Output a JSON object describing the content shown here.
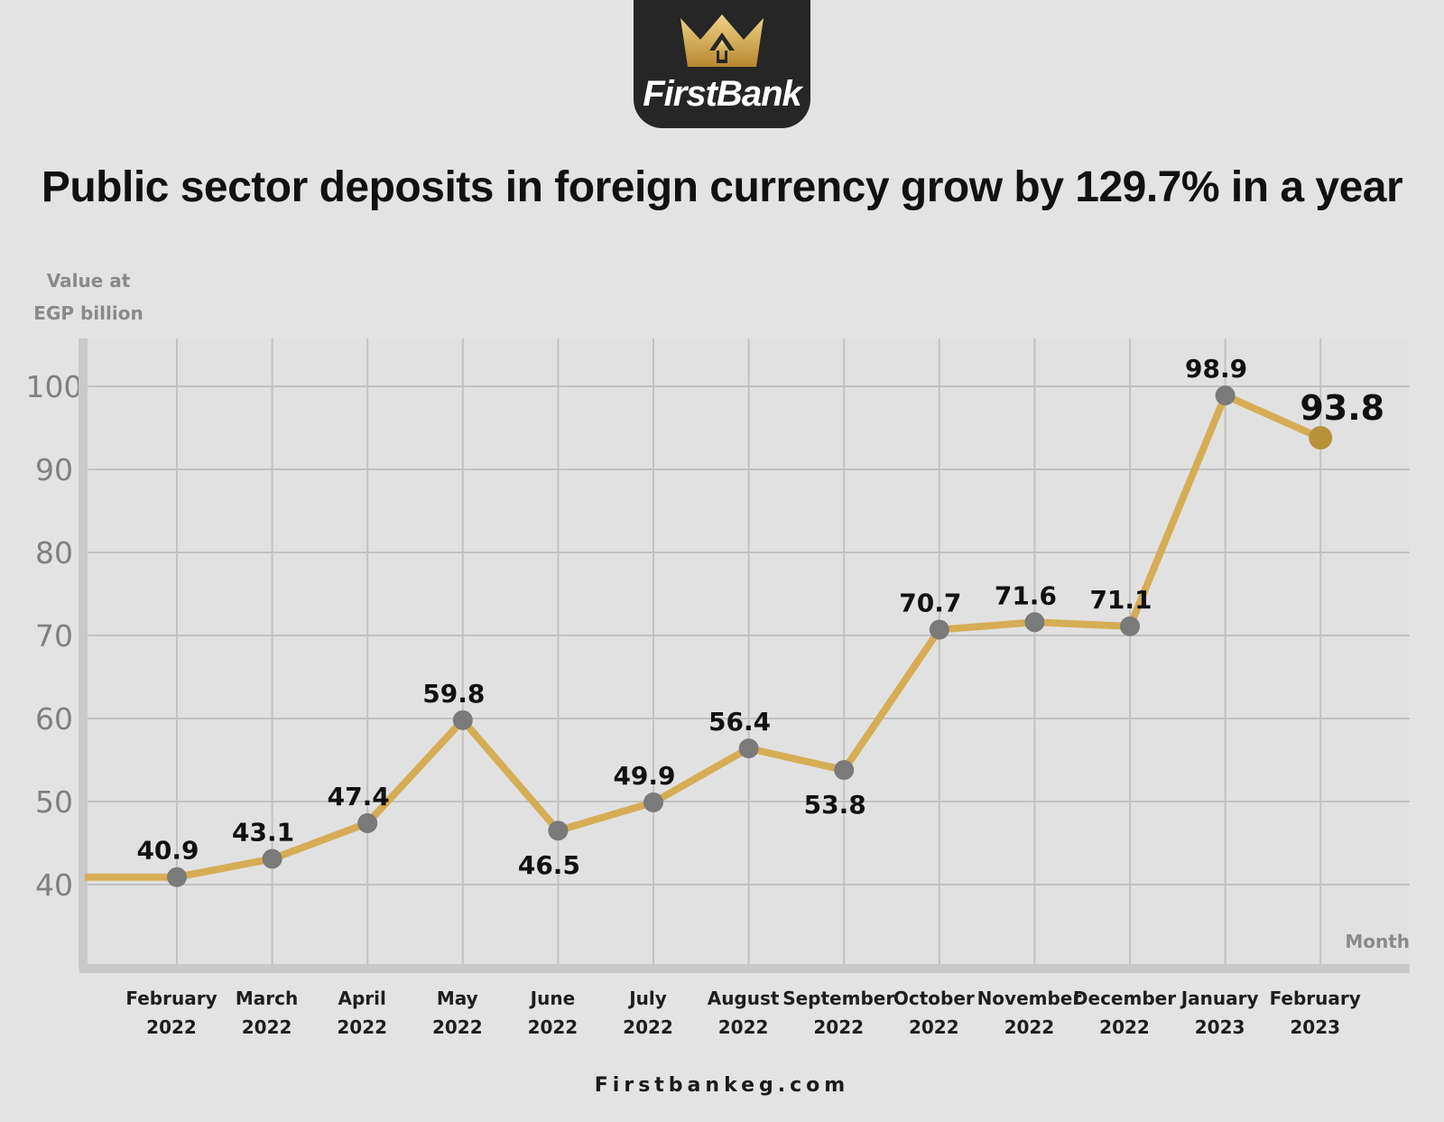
{
  "logo": {
    "text": "FirstBank",
    "icon": "crown-icon",
    "background": "#262626",
    "accent": "#c9a24a"
  },
  "title": "Public sector deposits in foreign currency grow by 129.7% in a year",
  "footer": "Firstbankeg.com",
  "chart_data": {
    "type": "line",
    "title": "Public sector deposits in foreign currency grow by 129.7% in a year",
    "ylabel": [
      "Value at",
      "EGP billion"
    ],
    "xlabel": "Month",
    "ylim": [
      30,
      105
    ],
    "yticks": [
      40,
      50,
      60,
      70,
      80,
      90,
      100
    ],
    "grid": true,
    "line_color": "#d6ad55",
    "point_color": "#7a7a7a",
    "last_point_color": "#b8913a",
    "categories": [
      [
        "February",
        "2022"
      ],
      [
        "March",
        "2022"
      ],
      [
        "April",
        "2022"
      ],
      [
        "May",
        "2022"
      ],
      [
        "June",
        "2022"
      ],
      [
        "July",
        "2022"
      ],
      [
        "August",
        "2022"
      ],
      [
        "September",
        "2022"
      ],
      [
        "October",
        "2022"
      ],
      [
        "November",
        "2022"
      ],
      [
        "December",
        "2022"
      ],
      [
        "January",
        "2023"
      ],
      [
        "February",
        "2023"
      ]
    ],
    "values": [
      40.9,
      43.1,
      47.4,
      59.8,
      46.5,
      49.9,
      56.4,
      53.8,
      70.7,
      71.6,
      71.1,
      98.9,
      93.8
    ],
    "label_positions": [
      "above",
      "above",
      "above",
      "above",
      "below",
      "above",
      "above",
      "below",
      "above",
      "above",
      "above",
      "above",
      "above"
    ]
  }
}
